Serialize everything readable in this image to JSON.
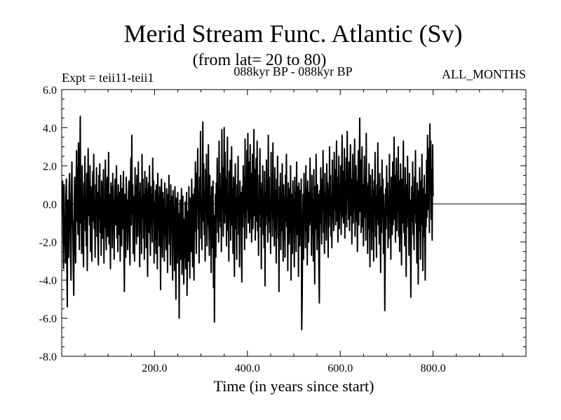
{
  "chart_data": {
    "type": "line",
    "title": "Merid Stream Func. Atlantic (Sv)",
    "subtitle": "(from lat= 20 to 80)",
    "left_note": "Expt = teii11-teii1",
    "center_note": "088kyr BP - 088kyr BP",
    "right_note": "ALL_MONTHS",
    "xlabel": "Time (in years since start)",
    "ylabel": "",
    "xlim": [
      0,
      1000
    ],
    "ylim": [
      -8,
      6
    ],
    "xticks": [
      200,
      400,
      600,
      800
    ],
    "xtick_labels": [
      "200.0",
      "400.0",
      "600.0",
      "800.0"
    ],
    "yticks": [
      -8,
      -6,
      -4,
      -2,
      0,
      2,
      4,
      6
    ],
    "ytick_labels": [
      "-8.0",
      "-6.0",
      "-4.0",
      "-2.0",
      "0.0",
      "2.0",
      "4.0",
      "6.0"
    ],
    "zero_line": true,
    "grid": false,
    "series": [
      {
        "x_start": 1,
        "x_step": 1,
        "values": [
          -0.5,
          1.2,
          -1.8,
          -3.4,
          1.0,
          -2.2,
          -0.6,
          -3.1,
          0.4,
          1.3,
          -2.8,
          -5.4,
          0.2,
          -1.5,
          -2.8,
          0.9,
          1.6,
          -0.3,
          -2.6,
          -4.0,
          0.5,
          2.2,
          -0.7,
          -1.2,
          -3.5,
          -4.8,
          0.1,
          1.4,
          -2.0,
          -3.1,
          0.6,
          2.8,
          -0.9,
          1.9,
          -1.6,
          3.2,
          0.7,
          -2.4,
          1.8,
          4.6,
          -1.0,
          0.8,
          -2.6,
          2.0,
          -0.4,
          -1.9,
          -3.3,
          1.1,
          -0.8,
          2.5,
          -1.4,
          0.3,
          -2.2,
          1.6,
          -3.5,
          0.5,
          2.9,
          -0.6,
          1.2,
          -1.1,
          2.0,
          -2.5,
          0.9,
          -1.6,
          -3.0,
          0.4,
          1.7,
          -0.9,
          2.6,
          -1.3,
          0.2,
          -2.8,
          1.0,
          -0.5,
          1.9,
          -1.7,
          0.6,
          -2.0,
          -3.2,
          1.5,
          -0.8,
          2.1,
          -1.5,
          0.3,
          -2.7,
          1.2,
          -0.4,
          -1.8,
          0.7,
          1.8,
          -3.1,
          0.1,
          -1.2,
          2.3,
          -0.9,
          -2.4,
          0.8,
          1.4,
          -1.7,
          -0.3,
          2.7,
          -2.1,
          0.5,
          -1.0,
          -3.4,
          1.1,
          -0.6,
          0.9,
          -2.3,
          1.6,
          -1.4,
          0.2,
          -2.9,
          0.7,
          1.3,
          -1.1,
          -0.2,
          2.0,
          -1.8,
          0.4,
          -2.5,
          1.0,
          -0.7,
          -1.6,
          0.6,
          -3.0,
          1.5,
          -0.4,
          -2.2,
          0.8,
          -1.3,
          0.3,
          1.7,
          -2.0,
          -4.6,
          0.5,
          -1.2,
          -2.8,
          1.4,
          -0.9,
          0.2,
          -2.4,
          -1.0,
          0.7,
          1.2,
          -1.9,
          -3.2,
          0.6,
          2.4,
          -1.1,
          3.6,
          -0.5,
          1.0,
          -2.6,
          0.4,
          -1.4,
          -3.0,
          1.9,
          -0.8,
          0.9,
          -2.1,
          1.5,
          -0.3,
          -1.7,
          2.2,
          -0.9,
          0.6,
          -3.3,
          1.1,
          -1.2,
          0.3,
          -2.6,
          2.6,
          -0.7,
          1.3,
          -1.8,
          0.5,
          -2.9,
          1.7,
          -1.0,
          0.8,
          -2.3,
          1.4,
          -0.6,
          -3.8,
          0.2,
          1.1,
          -1.5,
          2.0,
          -0.4,
          -2.7,
          0.9,
          -1.1,
          0.5,
          -2.0,
          2.4,
          -0.8,
          1.2,
          -3.1,
          0.1,
          -1.9,
          0.7,
          -2.6,
          1.0,
          -0.5,
          -3.4,
          1.6,
          -1.3,
          0.4,
          -2.2,
          0.9,
          -0.6,
          -4.5,
          0.3,
          1.3,
          -1.7,
          -2.8,
          0.6,
          -1.0,
          0.2,
          -3.0,
          1.1,
          -1.6,
          -0.3,
          -2.4,
          0.8,
          -1.2,
          -3.6,
          0.5,
          -0.9,
          1.5,
          -2.1,
          0.2,
          -3.2,
          1.0,
          -1.5,
          0.4,
          -2.7,
          -4.0,
          0.7,
          -1.3,
          -0.2,
          -3.5,
          0.9,
          -2.0,
          -5.0,
          0.3,
          -1.8,
          -3.1,
          0.6,
          -2.6,
          -0.5,
          -6.0,
          -1.4,
          0.2,
          -2.9,
          -1.0,
          0.8,
          -3.7,
          -1.6,
          0.4,
          -2.3,
          -4.2,
          -0.8,
          -2.8,
          0.1,
          -3.4,
          -1.2,
          0.6,
          -4.8,
          -2.0,
          -0.4,
          -3.0,
          0.9,
          -1.7,
          -3.9,
          0.3,
          -1.1,
          -2.5,
          1.3,
          -0.6,
          -3.3,
          0.5,
          -1.9,
          -4.0,
          0.8,
          -1.4,
          2.2,
          -0.7,
          -2.6,
          1.6,
          -0.2,
          2.9,
          -1.3,
          0.6,
          -3.1,
          1.4,
          -0.5,
          3.8,
          -1.8,
          0.3,
          -2.4,
          1.0,
          4.3,
          -0.9,
          2.1,
          -1.6,
          0.7,
          -3.0,
          1.8,
          -0.4,
          2.6,
          -2.2,
          0.2,
          -1.1,
          3.1,
          -0.8,
          -2.7,
          1.5,
          -1.4,
          0.4,
          -3.6,
          0.9,
          -1.0,
          -2.3,
          1.2,
          -4.4,
          -0.6,
          -6.2,
          -1.9,
          0.5,
          -2.8,
          1.1,
          -0.7,
          2.4,
          -1.5,
          0.3,
          -2.0,
          3.3,
          -0.9,
          1.6,
          -1.2,
          0.8,
          -2.5,
          3.9,
          -0.3,
          1.9,
          -1.7,
          0.6,
          4.0,
          -1.0,
          2.7,
          -0.5,
          1.3,
          -2.2,
          0.9,
          3.5,
          -1.4,
          0.2,
          -3.0,
          1.7,
          -0.8,
          2.3,
          -1.9,
          0.5,
          3.0,
          -1.1,
          0.8,
          -2.6,
          1.4,
          -0.4,
          -3.8,
          0.7,
          2.1,
          -1.3,
          0.3,
          -2.9,
          1.0,
          -0.6,
          2.5,
          -1.6,
          0.4,
          -3.3,
          1.2,
          -0.9,
          0.6,
          -2.1,
          -4.1,
          0.9,
          -1.2,
          2.0,
          -0.5,
          1.4,
          -2.4,
          3.4,
          -0.7,
          1.1,
          -1.8,
          2.8,
          -0.3,
          3.7,
          -1.0,
          0.5,
          2.2,
          -1.5,
          3.1,
          -0.8,
          1.6,
          -2.0,
          0.4,
          2.6,
          -1.3,
          0.9,
          3.9,
          -0.6,
          1.8,
          -1.9,
          0.7,
          2.4,
          -0.9,
          3.3,
          -1.4,
          0.2,
          -2.7,
          1.5,
          -0.5,
          2.9,
          -1.2,
          0.8,
          -3.4,
          1.1,
          -0.7,
          2.0,
          -1.6,
          0.4,
          -2.3,
          1.7,
          -4.3,
          0.6,
          -1.1,
          2.3,
          -0.6,
          1.2,
          -2.0,
          3.6,
          -0.9,
          1.4,
          -1.5,
          0.3,
          -2.6,
          2.7,
          -0.4,
          1.0,
          -1.7,
          3.2,
          -0.8,
          0.5,
          -2.2,
          1.9,
          -1.3,
          0.7,
          -3.1,
          1.3,
          -0.5,
          2.5,
          -1.8,
          0.2,
          -4.6,
          0.9,
          -1.0,
          1.6,
          -2.4,
          0.6,
          -1.4,
          2.1,
          -0.7,
          -3.0,
          1.0,
          -1.9,
          0.4,
          -2.8,
          1.5,
          -0.9,
          2.6,
          -1.2,
          0.3,
          -3.5,
          1.1,
          -0.6,
          -2.1,
          0.8,
          -1.5,
          2.0,
          -4.0,
          0.5,
          -1.3,
          -2.6,
          1.2,
          -0.8,
          0.2,
          -3.3,
          1.4,
          -1.0,
          0.6,
          -2.5,
          2.2,
          -0.7,
          -1.6,
          0.9,
          -3.8,
          1.1,
          -0.4,
          -2.2,
          0.7,
          -1.7,
          1.3,
          -6.6,
          -5.0,
          -1.1,
          0.5,
          -2.9,
          1.6,
          -0.8,
          0.3,
          -2.3,
          2.0,
          -1.4,
          0.8,
          -3.2,
          1.2,
          -0.5,
          -2.0,
          0.6,
          -1.1,
          2.4,
          -0.9,
          0.4,
          -2.7,
          1.5,
          -1.6,
          0.2,
          -3.0,
          1.8,
          -0.6,
          -4.2,
          0.9,
          -1.3,
          2.6,
          -0.4,
          -2.4,
          1.0,
          -1.8,
          0.5,
          -3.5,
          -5.2,
          0.7,
          -1.0,
          1.9,
          -0.7,
          -2.1,
          1.3,
          -0.3,
          2.8,
          -1.5,
          0.6,
          -2.6,
          1.6,
          -0.9,
          0.3,
          -1.9,
          2.1,
          -0.5,
          1.1,
          -2.8,
          0.8,
          -1.2,
          3.0,
          -0.6,
          1.5,
          -1.7,
          0.4,
          -2.3,
          2.3,
          -0.8,
          1.0,
          -1.4,
          2.7,
          -0.3,
          1.8,
          -1.1,
          0.6,
          3.3,
          -0.9,
          1.4,
          -2.0,
          0.5,
          2.5,
          -1.3,
          0.9,
          -0.4,
          2.0,
          -1.6,
          1.2,
          3.6,
          -0.7,
          1.7,
          -1.0,
          0.4,
          2.9,
          -1.8,
          1.1,
          -0.5,
          2.4,
          -1.2,
          3.8,
          0.3,
          1.6,
          -0.8,
          2.2,
          -1.4,
          0.7,
          3.1,
          -0.6,
          1.3,
          -2.1,
          0.9,
          2.6,
          -1.0,
          1.5,
          -0.3,
          3.4,
          -1.7,
          0.5,
          2.0,
          -0.9,
          1.2,
          -2.5,
          0.8,
          2.8,
          -1.1,
          1.6,
          4.5,
          -0.4,
          2.3,
          -1.5,
          0.6,
          3.0,
          -1.2,
          1.0,
          -2.2,
          0.4,
          2.5,
          -0.7,
          1.4,
          -1.9,
          3.7,
          -0.5,
          1.1,
          -2.6,
          0.9,
          -1.3,
          2.1,
          -0.6,
          -3.3,
          1.5,
          -0.9,
          0.3,
          -2.4,
          1.8,
          -1.4,
          0.7,
          -3.0,
          1.2,
          -0.5,
          2.7,
          -1.7,
          0.4,
          -2.8,
          1.0,
          -0.8,
          3.2,
          -1.1,
          0.6,
          -2.1,
          1.6,
          -0.4,
          -3.6,
          0.9,
          -1.5,
          2.3,
          -0.7,
          1.3,
          -2.6,
          0.5,
          -1.0,
          -5.6,
          -2.2,
          0.8,
          -1.3,
          2.0,
          -0.6,
          1.1,
          -2.3,
          0.4,
          -1.8,
          2.6,
          -0.9,
          0.7,
          -2.9,
          1.4,
          -0.5,
          -1.6,
          2.2,
          -1.1,
          0.6,
          3.5,
          -0.8,
          1.5,
          -2.0,
          0.3,
          2.4,
          -1.4,
          0.9,
          -0.4,
          3.0,
          -1.7,
          1.2,
          -2.5,
          0.7,
          2.1,
          -0.6,
          -3.2,
          1.3,
          -1.0,
          0.5,
          3.3,
          -1.5,
          0.8,
          -2.2,
          1.9,
          -0.3,
          -3.8,
          1.0,
          -1.2,
          2.5,
          -0.7,
          0.4,
          -2.7,
          1.6,
          -1.3,
          0.2,
          -4.9,
          -1.8,
          0.9,
          -0.9,
          2.2,
          -1.6,
          0.6,
          -2.4,
          1.4,
          -0.5,
          2.8,
          -1.0,
          0.3,
          -3.1,
          1.1,
          -0.8,
          -4.2,
          0.7,
          -1.4,
          1.9,
          -0.6,
          -2.9,
          1.2,
          -1.1,
          2.6,
          -0.4,
          -3.5,
          0.8,
          -1.7,
          1.5,
          -0.9,
          -4.0,
          0.5,
          -1.2,
          2.3,
          -0.7,
          3.6,
          1.0,
          -0.3,
          2.9,
          -1.5,
          4.2,
          0.6,
          3.3,
          -0.8,
          1.8,
          -1.9,
          3.1,
          0.4
        ]
      }
    ]
  }
}
